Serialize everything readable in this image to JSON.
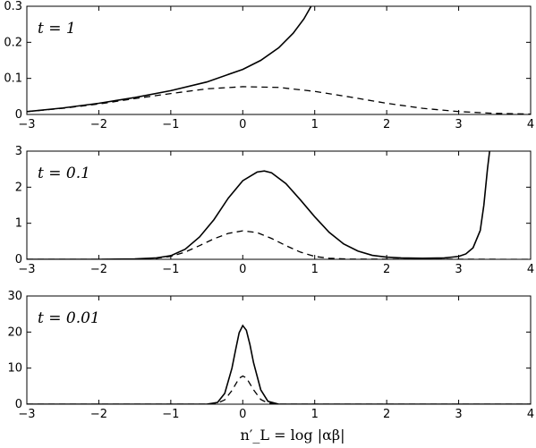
{
  "xlabel": "n′_L = log |αβ|",
  "chart_data": [
    {
      "type": "line",
      "panel_label": "t = 1",
      "xlim": [
        -3,
        4
      ],
      "ylim": [
        0,
        0.3
      ],
      "xticks": [
        "−3",
        "−2",
        "−1",
        "0",
        "1",
        "2",
        "3",
        "4"
      ],
      "yticks": [
        "0",
        "0.1",
        "0.2",
        "0.3"
      ],
      "series": [
        {
          "style": "solid",
          "x": [
            -3,
            -2.5,
            -2,
            -1.5,
            -1,
            -0.5,
            0,
            0.25,
            0.5,
            0.7,
            0.85,
            0.95
          ],
          "y": [
            0.008,
            0.018,
            0.031,
            0.047,
            0.066,
            0.09,
            0.125,
            0.15,
            0.185,
            0.225,
            0.265,
            0.3
          ]
        },
        {
          "style": "dashed",
          "x": [
            -3,
            -2.5,
            -2,
            -1.5,
            -1,
            -0.5,
            0,
            0.5,
            1,
            1.5,
            2,
            2.5,
            3,
            3.5,
            4
          ],
          "y": [
            0.008,
            0.017,
            0.029,
            0.044,
            0.058,
            0.071,
            0.077,
            0.075,
            0.064,
            0.048,
            0.031,
            0.017,
            0.008,
            0.003,
            0.001
          ]
        }
      ]
    },
    {
      "type": "line",
      "panel_label": "t = 0.1",
      "xlim": [
        -3,
        4
      ],
      "ylim": [
        0,
        3
      ],
      "xticks": [
        "−3",
        "−2",
        "−1",
        "0",
        "1",
        "2",
        "3",
        "4"
      ],
      "yticks": [
        "0",
        "1",
        "2",
        "3"
      ],
      "series": [
        {
          "style": "solid",
          "x": [
            -3,
            -2,
            -1.5,
            -1.2,
            -1,
            -0.8,
            -0.6,
            -0.4,
            -0.2,
            0,
            0.2,
            0.3,
            0.4,
            0.6,
            0.8,
            1,
            1.2,
            1.4,
            1.6,
            1.8,
            2,
            2.2,
            2.5,
            2.8,
            3,
            3.1,
            3.2,
            3.3,
            3.35,
            3.4,
            3.43
          ],
          "y": [
            0,
            0,
            0.01,
            0.04,
            0.1,
            0.28,
            0.62,
            1.1,
            1.7,
            2.18,
            2.42,
            2.45,
            2.4,
            2.1,
            1.65,
            1.18,
            0.75,
            0.43,
            0.23,
            0.11,
            0.06,
            0.04,
            0.03,
            0.04,
            0.08,
            0.15,
            0.32,
            0.8,
            1.5,
            2.5,
            3
          ]
        },
        {
          "style": "dashed",
          "x": [
            -3,
            -1.5,
            -1.2,
            -1,
            -0.8,
            -0.6,
            -0.4,
            -0.2,
            0,
            0.2,
            0.4,
            0.6,
            0.8,
            1,
            1.2,
            1.5,
            4
          ],
          "y": [
            0,
            0,
            0.03,
            0.08,
            0.2,
            0.38,
            0.57,
            0.72,
            0.79,
            0.74,
            0.58,
            0.38,
            0.2,
            0.08,
            0.03,
            0.005,
            0
          ]
        }
      ]
    },
    {
      "type": "line",
      "panel_label": "t = 0.01",
      "xlim": [
        -3,
        4
      ],
      "ylim": [
        0,
        30
      ],
      "xticks": [
        "−3",
        "−2",
        "−1",
        "0",
        "1",
        "2",
        "3",
        "4"
      ],
      "yticks": [
        "0",
        "10",
        "20",
        "30"
      ],
      "series": [
        {
          "style": "solid",
          "x": [
            -3,
            -0.5,
            -0.35,
            -0.25,
            -0.15,
            -0.1,
            -0.05,
            0,
            0.05,
            0.1,
            0.15,
            0.25,
            0.35,
            0.5,
            4
          ],
          "y": [
            0,
            0,
            0.5,
            3,
            10,
            15,
            19.8,
            21.8,
            20.5,
            16.5,
            11.5,
            4,
            0.8,
            0,
            0
          ]
        },
        {
          "style": "dashed",
          "x": [
            -3,
            -0.5,
            -0.35,
            -0.25,
            -0.15,
            -0.05,
            0,
            0.05,
            0.15,
            0.25,
            0.35,
            0.5,
            4
          ],
          "y": [
            0,
            0,
            0.3,
            1.2,
            3.8,
            7.2,
            7.8,
            7.3,
            4,
            1.3,
            0.3,
            0,
            0
          ]
        }
      ]
    }
  ]
}
